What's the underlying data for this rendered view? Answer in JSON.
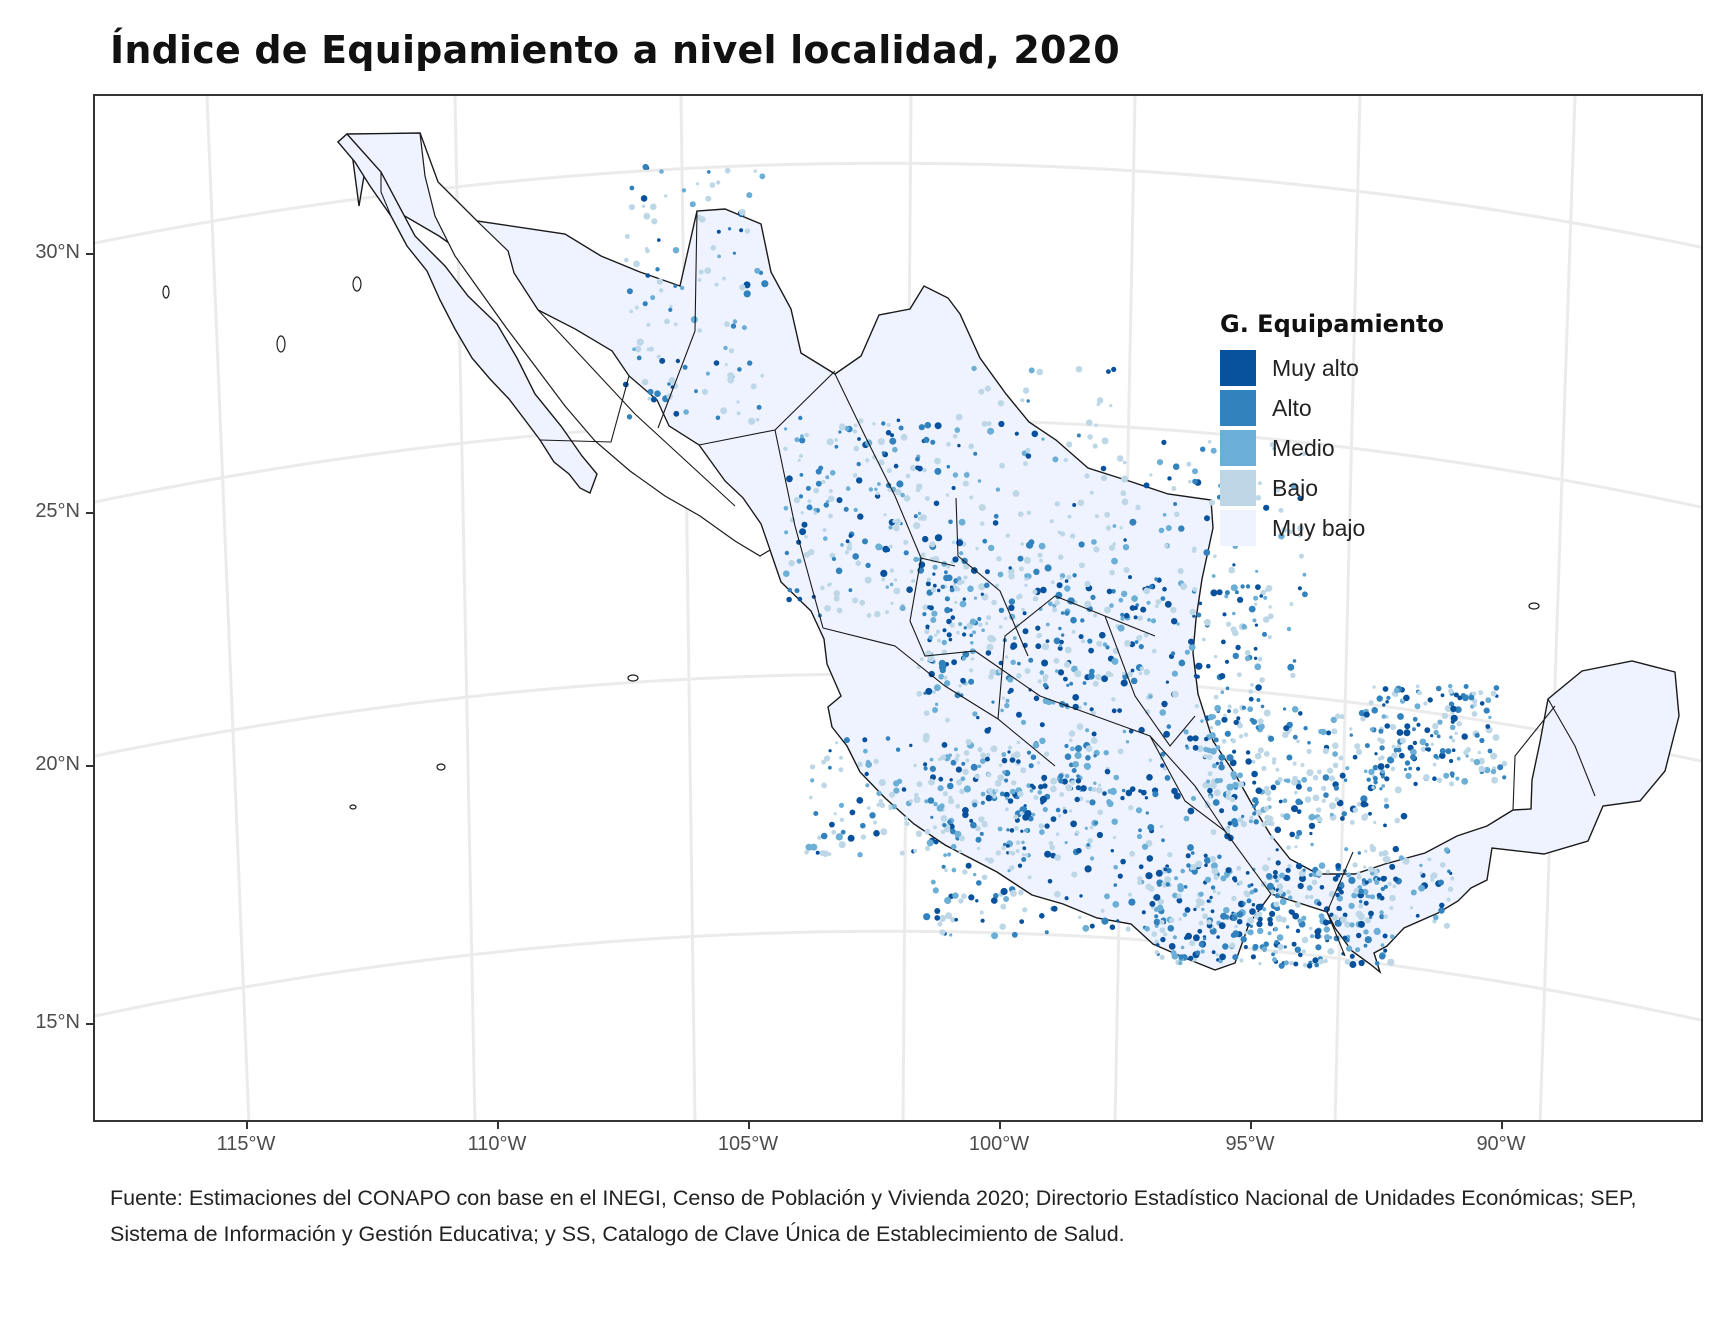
{
  "title": "Índice de Equipamiento a nivel localidad, 2020",
  "axes": {
    "y_ticks": [
      "30°N",
      "25°N",
      "20°N",
      "15°N"
    ],
    "x_ticks": [
      "115°W",
      "110°W",
      "105°W",
      "100°W",
      "95°W",
      "90°W"
    ]
  },
  "legend": {
    "title": "G. Equipamiento",
    "items": [
      {
        "label": "Muy alto",
        "color": "#08519c"
      },
      {
        "label": "Alto",
        "color": "#3182bd"
      },
      {
        "label": "Medio",
        "color": "#6baed6"
      },
      {
        "label": "Bajo",
        "color": "#bdd7e7"
      },
      {
        "label": "Muy bajo",
        "color": "#eff3ff"
      }
    ]
  },
  "caption": "Fuente: Estimaciones del CONAPO con base en el INEGI, Censo de Población y Vivienda 2020; Directorio Estadístico Nacional de Unidades Económicas; SEP, Sistema de Información y Gestión Educativa; y SS, Catalogo de Clave Única de Establecimiento de Salud.",
  "colors": {
    "grid": "#ebebeb",
    "border": "#333333",
    "state_line": "#1a1a1a"
  }
}
